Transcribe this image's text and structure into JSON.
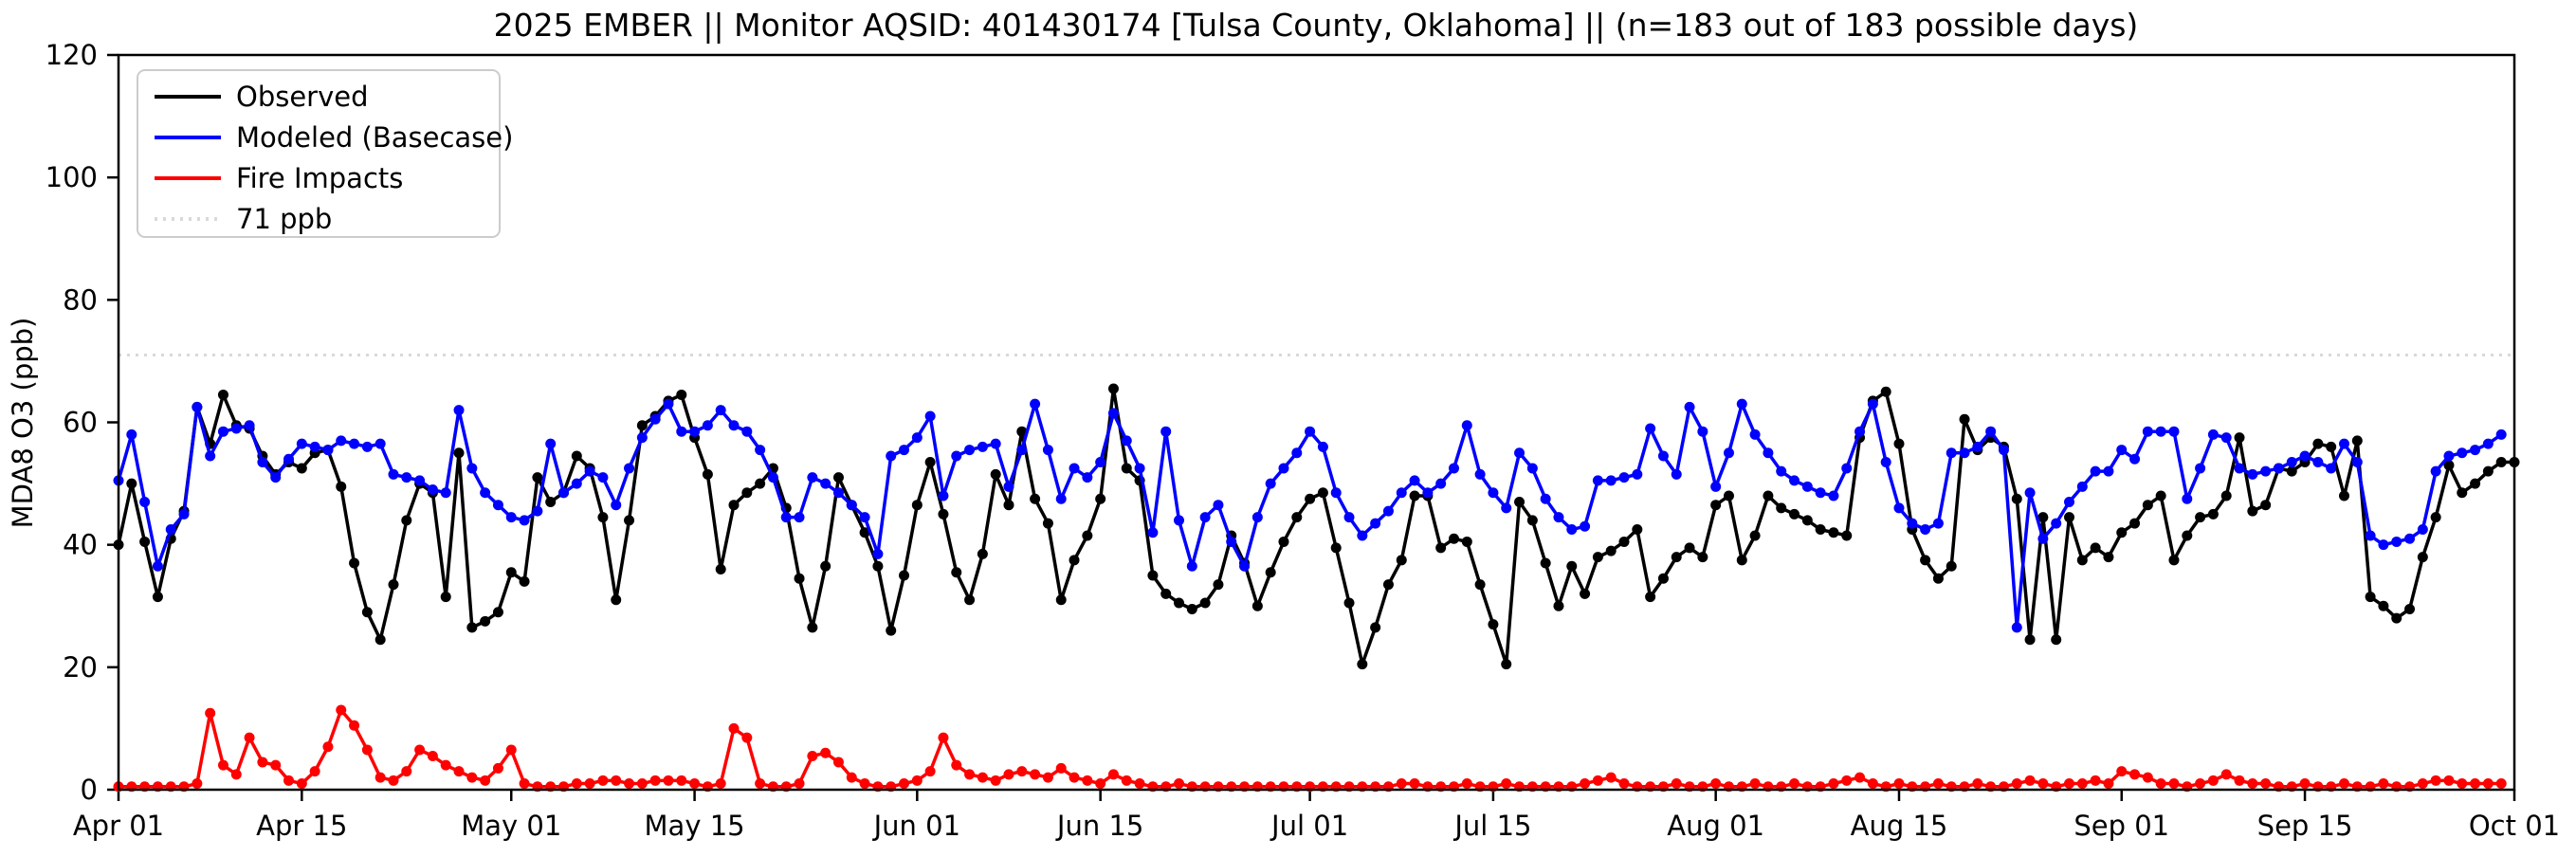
{
  "title": "2025 EMBER || Monitor AQSID: 401430174 [Tulsa County, Oklahoma] || (n=183 out of 183 possible days)",
  "axes": {
    "ylabel": "MDA8 O3 (ppb)",
    "ylim": [
      0,
      120
    ],
    "yticks": [
      0,
      20,
      40,
      60,
      80,
      100,
      120
    ],
    "x_ticks": [
      {
        "label": "Apr 01",
        "day": 0
      },
      {
        "label": "Apr 15",
        "day": 14
      },
      {
        "label": "May 01",
        "day": 30
      },
      {
        "label": "May 15",
        "day": 44
      },
      {
        "label": "Jun 01",
        "day": 61
      },
      {
        "label": "Jun 15",
        "day": 75
      },
      {
        "label": "Jul 01",
        "day": 91
      },
      {
        "label": "Jul 15",
        "day": 105
      },
      {
        "label": "Aug 01",
        "day": 122
      },
      {
        "label": "Aug 15",
        "day": 136
      },
      {
        "label": "Sep 01",
        "day": 153
      },
      {
        "label": "Sep 15",
        "day": 167
      },
      {
        "label": "Oct 01",
        "day": 183
      }
    ],
    "n_days": 183
  },
  "legend": [
    {
      "label": "Observed",
      "color": "#000000",
      "style": "solid"
    },
    {
      "label": "Modeled (Basecase)",
      "color": "#0000ff",
      "style": "solid"
    },
    {
      "label": "Fire Impacts",
      "color": "#ff0000",
      "style": "solid"
    },
    {
      "label": "71 ppb",
      "color": "#d9d9d9",
      "style": "dotted"
    }
  ],
  "ref_line": {
    "value": 71,
    "label": "71 ppb",
    "color": "#d9d9d9"
  },
  "chart_data": {
    "type": "line",
    "title": "2025 EMBER || Monitor AQSID: 401430174 [Tulsa County, Oklahoma] || (n=183 out of 183 possible days)",
    "xlabel": "",
    "ylabel": "MDA8 O3 (ppb)",
    "ylim": [
      0,
      120
    ],
    "x_range": [
      "Apr 01",
      "Oct 01"
    ],
    "x_unit": "daily values, Apr 01 - Sep 30 (183 days)",
    "grid": false,
    "legend_position": "upper left",
    "ref_line": 71,
    "series": [
      {
        "name": "Observed",
        "color": "#000000",
        "values": [
          40,
          50,
          40.5,
          31.5,
          41,
          45.5,
          62.5,
          56.5,
          64.5,
          59.5,
          59,
          54.5,
          51.5,
          53.5,
          52.5,
          55,
          55.5,
          49.5,
          37,
          29,
          24.5,
          33.5,
          44,
          50,
          48.5,
          31.5,
          55,
          26.5,
          27.5,
          29,
          35.5,
          34,
          51,
          47,
          48.5,
          54.5,
          52.5,
          44.5,
          31,
          44,
          59.5,
          61,
          63.5,
          64.5,
          57.5,
          51.5,
          36,
          46.5,
          48.5,
          50,
          52.5,
          46,
          34.5,
          26.5,
          36.5,
          51,
          46.5,
          42,
          36.5,
          26,
          35,
          46.5,
          53.5,
          45,
          35.5,
          31,
          38.5,
          51.5,
          46.5,
          58.5,
          47.5,
          43.5,
          31,
          37.5,
          41.5,
          47.5,
          65.5,
          52.5,
          50.5,
          35,
          32,
          30.5,
          29.5,
          30.5,
          33.5,
          41.5,
          37,
          30,
          35.5,
          40.5,
          44.5,
          47.5,
          48.5,
          39.5,
          30.5,
          20.5,
          26.5,
          33.5,
          37.5,
          48,
          48,
          39.5,
          41,
          40.5,
          33.5,
          27,
          20.5,
          47,
          44,
          37,
          30,
          36.5,
          32,
          38,
          39,
          40.5,
          42.5,
          31.5,
          34.5,
          38,
          39.5,
          38,
          46.5,
          48,
          37.5,
          41.5,
          48,
          46,
          45,
          44,
          42.5,
          42,
          41.5,
          57.5,
          63.5,
          65,
          56.5,
          42.5,
          37.5,
          34.5,
          36.5,
          60.5,
          55.5,
          57.5,
          56,
          47.5,
          24.5,
          44.5,
          24.5,
          44.5,
          37.5,
          39.5,
          38,
          42,
          43.5,
          46.5,
          48,
          37.5,
          41.5,
          44.5,
          45,
          48,
          57.5,
          45.5,
          46.5,
          52.5,
          52,
          53.5,
          56.5,
          56,
          48,
          57,
          31.5,
          30,
          28,
          29.5,
          38,
          44.5,
          53,
          48.5,
          50,
          52,
          53.5,
          53.5
        ]
      },
      {
        "name": "Modeled (Basecase)",
        "color": "#0000ff",
        "values": [
          50.5,
          58,
          47,
          36.5,
          42.5,
          45,
          62.5,
          54.5,
          58.5,
          59,
          59.5,
          53.5,
          51,
          54,
          56.5,
          56,
          55.5,
          57,
          56.5,
          56,
          56.5,
          51.5,
          51,
          50.5,
          49,
          48.5,
          62,
          52.5,
          48.5,
          46.5,
          44.5,
          44,
          45.5,
          56.5,
          48.5,
          50,
          52,
          51,
          46.5,
          52.5,
          57.5,
          60.5,
          63,
          58.5,
          58.5,
          59.5,
          62,
          59.5,
          58.5,
          55.5,
          51,
          44.5,
          44.5,
          51,
          50,
          48.5,
          46.5,
          44.5,
          38.5,
          54.5,
          55.5,
          57.5,
          61,
          48,
          54.5,
          55.5,
          56,
          56.5,
          49.5,
          55.5,
          63,
          55.5,
          47.5,
          52.5,
          51,
          53.5,
          61.5,
          57,
          52.5,
          42,
          58.5,
          44,
          36.5,
          44.5,
          46.5,
          40.5,
          36.5,
          44.5,
          50,
          52.5,
          55,
          58.5,
          56,
          48.5,
          44.5,
          41.5,
          43.5,
          45.5,
          48.5,
          50.5,
          48.5,
          50,
          52.5,
          59.5,
          51.5,
          48.5,
          46,
          55,
          52.5,
          47.5,
          44.5,
          42.5,
          43,
          50.5,
          50.5,
          51,
          51.5,
          59,
          54.5,
          51.5,
          62.5,
          58.5,
          49.5,
          55,
          63,
          58,
          55,
          52,
          50.5,
          49.5,
          48.5,
          48,
          52.5,
          58.5,
          63,
          53.5,
          46,
          43.5,
          42.5,
          43.5,
          55,
          55,
          56,
          58.5,
          55.5,
          26.5,
          48.5,
          41,
          43.5,
          47,
          49.5,
          52,
          52,
          55.5,
          54,
          58.5,
          58.5,
          58.5,
          47.5,
          52.5,
          58,
          57.5,
          52.5,
          51.5,
          52,
          52.5,
          53.5,
          54.5,
          53.5,
          52.5,
          56.5,
          53.5,
          41.5,
          40,
          40.5,
          41,
          42.5,
          52,
          54.5,
          55,
          55.5,
          56.5,
          58
        ]
      },
      {
        "name": "Fire Impacts",
        "color": "#ff0000",
        "values": [
          0.5,
          0.5,
          0.5,
          0.5,
          0.5,
          0.5,
          1,
          12.5,
          4,
          2.5,
          8.5,
          4.5,
          4,
          1.5,
          1,
          3,
          7,
          13,
          10.5,
          6.5,
          2,
          1.5,
          3,
          6.5,
          5.5,
          4,
          3,
          2,
          1.5,
          3.5,
          6.5,
          1,
          0.5,
          0.5,
          0.5,
          1,
          1,
          1.5,
          1.5,
          1,
          1,
          1.5,
          1.5,
          1.5,
          1,
          0.5,
          1,
          10,
          8.5,
          1,
          0.5,
          0.5,
          1,
          5.5,
          6,
          4.5,
          2,
          1,
          0.5,
          0.5,
          1,
          1.5,
          3,
          8.5,
          4,
          2.5,
          2,
          1.5,
          2.5,
          3,
          2.5,
          2,
          3.5,
          2,
          1.5,
          1,
          2.5,
          1.5,
          1,
          0.5,
          0.5,
          1,
          0.5,
          0.5,
          0.5,
          0.5,
          0.5,
          0.5,
          0.5,
          0.5,
          0.5,
          0.5,
          0.5,
          0.5,
          0.5,
          0.5,
          0.5,
          0.5,
          1,
          1,
          0.5,
          0.5,
          0.5,
          1,
          0.5,
          0.5,
          1,
          0.5,
          0.5,
          0.5,
          0.5,
          0.5,
          1,
          1.5,
          2,
          1,
          0.5,
          0.5,
          0.5,
          1,
          0.5,
          0.5,
          1,
          0.5,
          0.5,
          1,
          0.5,
          0.5,
          1,
          0.5,
          0.5,
          1,
          1.5,
          2,
          1,
          0.5,
          1,
          0.5,
          0.5,
          1,
          0.5,
          0.5,
          1,
          0.5,
          0.5,
          1,
          1.5,
          1,
          0.5,
          1,
          1,
          1.5,
          1,
          3,
          2.5,
          2,
          1,
          1,
          0.5,
          1,
          1.5,
          2.5,
          1.5,
          1,
          1,
          0.5,
          0.5,
          1,
          0.5,
          0.5,
          1,
          0.5,
          0.5,
          1,
          0.5,
          0.5,
          1,
          1.5,
          1.5,
          1,
          1,
          1,
          1
        ]
      }
    ]
  },
  "style": {
    "background": "#ffffff",
    "frame_color": "#000000",
    "observed_color": "#000000",
    "modeled_color": "#0000ff",
    "fire_color": "#ff0000",
    "refline_color": "#d9d9d9",
    "legend_border": "#cccccc"
  }
}
